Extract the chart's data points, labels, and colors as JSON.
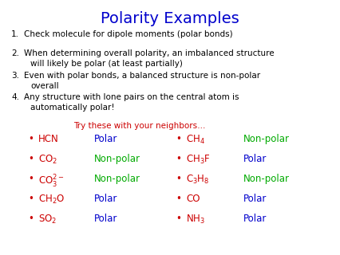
{
  "title": "Polarity Examples",
  "title_color": "#0000CC",
  "title_fontsize": 14,
  "bg_color": "#FFFFFF",
  "numbered_items": [
    [
      "1.",
      "Check molecule for dipole moments (polar bonds)",
      null
    ],
    [
      "2.",
      "When determining overall polarity, an imbalanced structure",
      "will likely be polar (at least partially)"
    ],
    [
      "3.",
      "Even with polar bonds, a balanced structure is non-polar",
      "overall"
    ],
    [
      "4.",
      "Any structure with lone pairs on the central atom is",
      "automatically polar!"
    ]
  ],
  "neighbor_text": "Try these with your neighbors…",
  "neighbor_color": "#CC0000",
  "left_mols": [
    "HCN",
    "CO$_2$",
    "CO$_3^{2-}$",
    "CH$_2$O",
    "SO$_2$"
  ],
  "left_answers": [
    "Polar",
    "Non-polar",
    "Non-polar",
    "Polar",
    "Polar"
  ],
  "left_answer_colors": [
    "#0000CC",
    "#00AA00",
    "#00AA00",
    "#0000CC",
    "#0000CC"
  ],
  "right_mols": [
    "CH$_4$",
    "CH$_3$F",
    "C$_3$H$_8$",
    "CO",
    "NH$_3$"
  ],
  "right_answers": [
    "Non-polar",
    "Polar",
    "Non-polar",
    "Polar",
    "Polar"
  ],
  "right_answer_colors": [
    "#00AA00",
    "#0000CC",
    "#00AA00",
    "#0000CC",
    "#0000CC"
  ],
  "molecule_color": "#CC0000",
  "bullet_color": "#CC0000",
  "text_color": "#000000",
  "body_fontsize": 7.5,
  "molecule_fontsize": 8.5,
  "answer_fontsize": 8.5
}
